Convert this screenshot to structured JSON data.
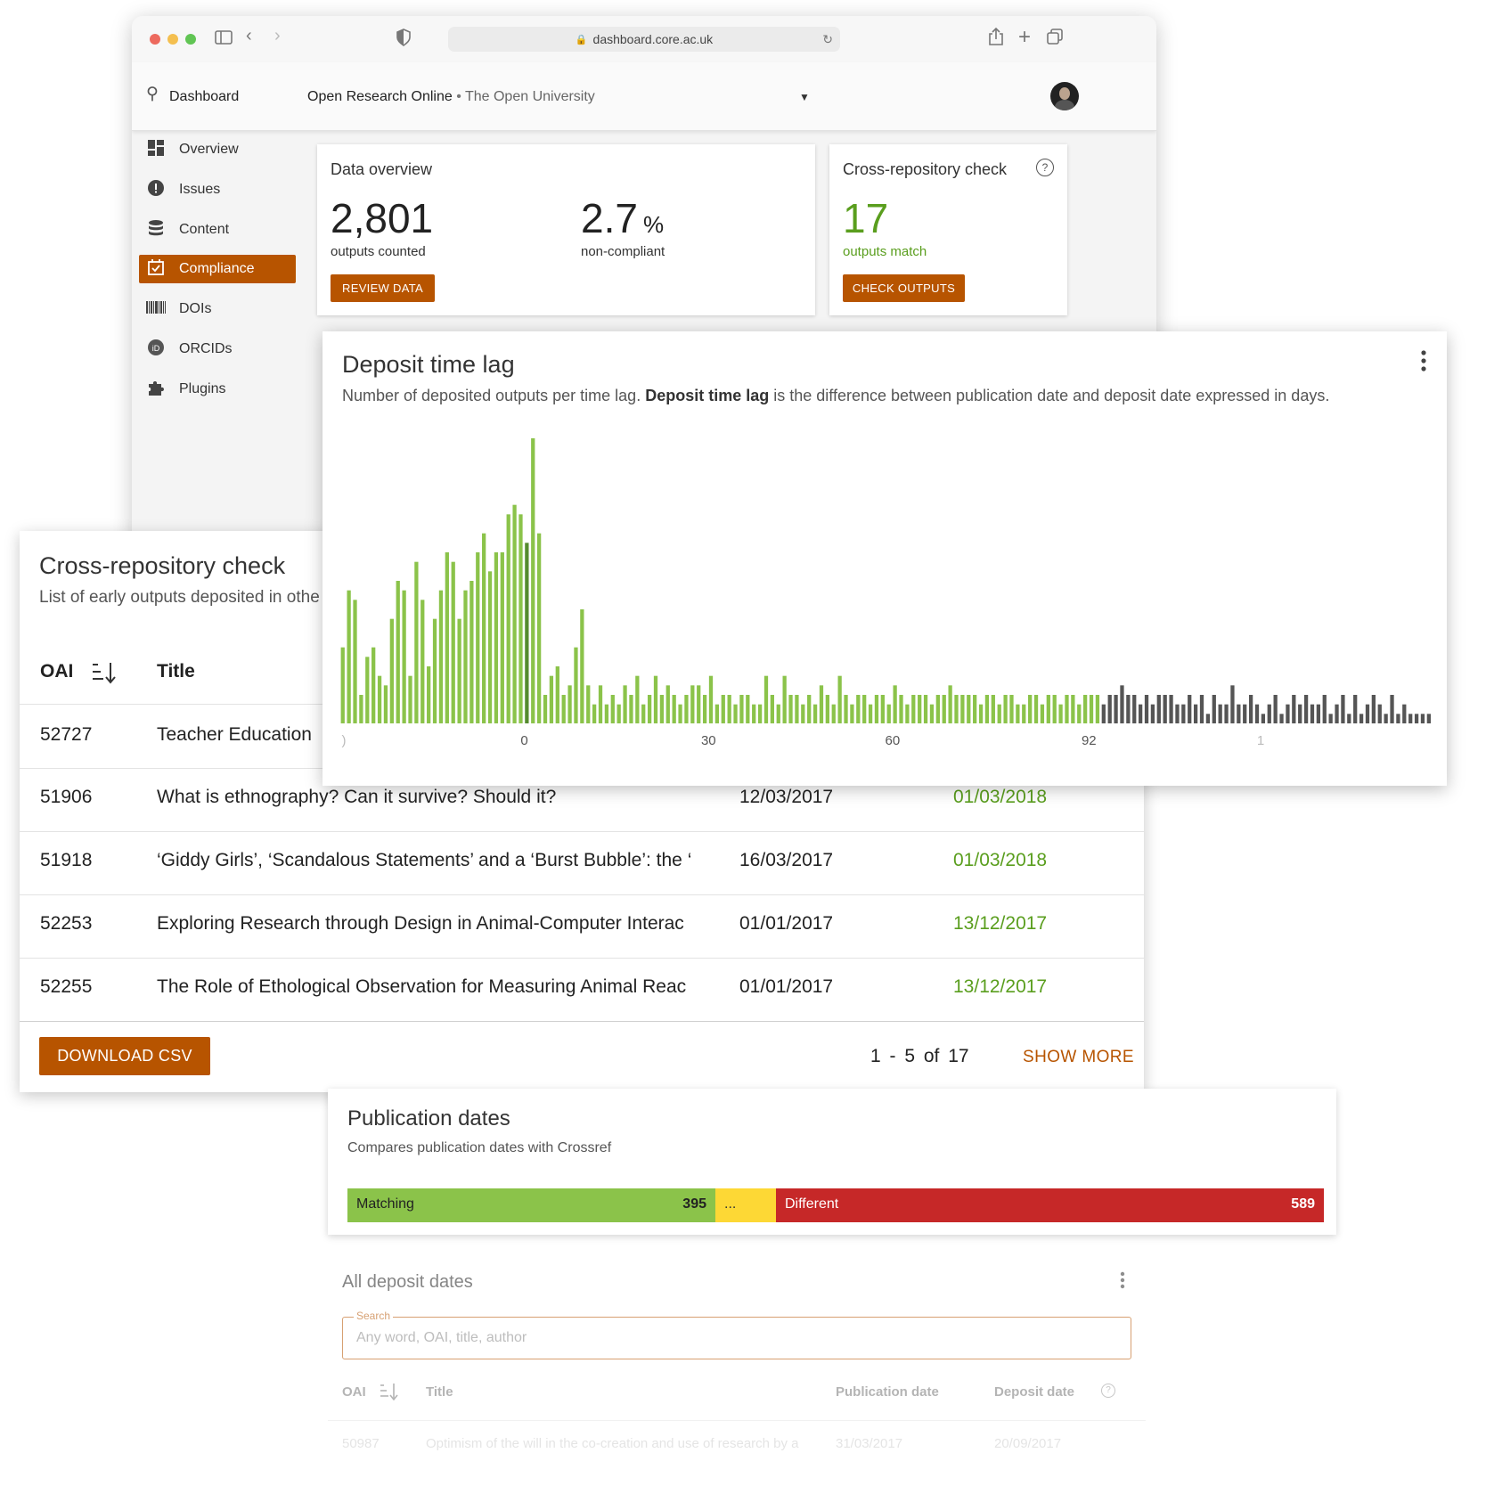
{
  "browser": {
    "url": "dashboard.core.ac.uk"
  },
  "header": {
    "app_title": "Dashboard",
    "repo_name": "Open Research Online",
    "repo_sep": " • ",
    "org_name": "The Open University"
  },
  "sidebar": {
    "items": [
      {
        "label": "Overview",
        "icon": "dashboard-icon"
      },
      {
        "label": "Issues",
        "icon": "alert-icon"
      },
      {
        "label": "Content",
        "icon": "database-icon"
      },
      {
        "label": "Compliance",
        "icon": "calendar-check-icon",
        "active": true
      },
      {
        "label": "DOIs",
        "icon": "barcode-icon"
      },
      {
        "label": "ORCIDs",
        "icon": "orcid-icon"
      },
      {
        "label": "Plugins",
        "icon": "puzzle-icon"
      }
    ]
  },
  "data_overview": {
    "title": "Data overview",
    "outputs_value": "2,801",
    "outputs_label": "outputs counted",
    "noncompliant_value": "2.7",
    "noncompliant_unit": "%",
    "noncompliant_label": "non-compliant",
    "button": "REVIEW DATA"
  },
  "cross_summary": {
    "title": "Cross-repository check",
    "value": "17",
    "label": "outputs match",
    "button": "CHECK OUTPUTS"
  },
  "cross_table": {
    "title": "Cross-repository check",
    "subtitle": "List of early outputs deposited in othe",
    "col_oai": "OAI",
    "col_title": "Title",
    "rows": [
      {
        "oai": "52727",
        "title": "Teacher Education",
        "pub": "",
        "dep": ""
      },
      {
        "oai": "51906",
        "title": "What is ethnography? Can it survive? Should it?",
        "pub": "12/03/2017",
        "dep": "01/03/2018"
      },
      {
        "oai": "51918",
        "title": "‘Giddy Girls’, ‘Scandalous Statements’ and a ‘Burst Bubble’: the ‘",
        "pub": "16/03/2017",
        "dep": "01/03/2018"
      },
      {
        "oai": "52253",
        "title": "Exploring Research through Design in Animal-Computer Interac",
        "pub": "01/01/2017",
        "dep": "13/12/2017"
      },
      {
        "oai": "52255",
        "title": "The Role of Ethological Observation for Measuring Animal Reac",
        "pub": "01/01/2017",
        "dep": "13/12/2017"
      }
    ],
    "download": "DOWNLOAD CSV",
    "pager_range": "1 - 5",
    "pager_of": "of",
    "pager_total": "17",
    "show_more": "SHOW MORE"
  },
  "lag_card": {
    "title": "Deposit time lag",
    "desc_pre": "Number of deposited outputs per time lag. ",
    "desc_bold": "Deposit time lag",
    "desc_post": " is the difference between publication date and deposit date expressed in days."
  },
  "chart_data": {
    "type": "bar",
    "title": "Deposit time lag",
    "xlabel": "",
    "ylabel": "",
    "x_ticks": [
      ")",
      "0",
      "30",
      "60",
      "92",
      "1"
    ],
    "x_tick_positions": [
      -30,
      0,
      30,
      60,
      92,
      120
    ],
    "grid": false,
    "colors": {
      "early": "#8bc34a",
      "zero": "#558b2f",
      "late": "#8bc34a",
      "beyond": "#555555"
    },
    "x_start": -30,
    "values": [
      8,
      14,
      13,
      3,
      7,
      8,
      5,
      4,
      11,
      15,
      14,
      5,
      17,
      13,
      6,
      11,
      14,
      18,
      17,
      11,
      14,
      15,
      18,
      20,
      16,
      18,
      18,
      22,
      23,
      22,
      19,
      30,
      20,
      3,
      5,
      6,
      3,
      4,
      8,
      12,
      4,
      2,
      4,
      2,
      3,
      2,
      4,
      3,
      5,
      2,
      3,
      5,
      3,
      4,
      3,
      2,
      3,
      4,
      4,
      3,
      5,
      2,
      3,
      3,
      2,
      3,
      3,
      2,
      2,
      5,
      3,
      2,
      5,
      3,
      3,
      2,
      3,
      2,
      4,
      3,
      2,
      5,
      3,
      2,
      3,
      3,
      2,
      3,
      3,
      2,
      4,
      3,
      2,
      3,
      3,
      3,
      2,
      3,
      3,
      4,
      3,
      3,
      3,
      3,
      2,
      3,
      3,
      2,
      3,
      3,
      2,
      2,
      3,
      3,
      2,
      3,
      3,
      2,
      3,
      3,
      2,
      3,
      3,
      3,
      2,
      3,
      3,
      4,
      3,
      3,
      2,
      3,
      2,
      3,
      3,
      3,
      2,
      2,
      3,
      2,
      3,
      1,
      3,
      2,
      2,
      4,
      2,
      2,
      3,
      2,
      1,
      2,
      3,
      1,
      2,
      3,
      2,
      3,
      2,
      2,
      3,
      1,
      2,
      3,
      1,
      3,
      1,
      2,
      3,
      2,
      1,
      3,
      1,
      2,
      1,
      1,
      1,
      1
    ],
    "beyond_index": 124,
    "ylim": [
      0,
      30
    ]
  },
  "pub_dates": {
    "title": "Publication dates",
    "subtitle": "Compares publication dates with Crossref",
    "matching_label": "Matching",
    "matching_value": 395,
    "middle_label": "...",
    "different_label": "Different",
    "different_value": 589,
    "colors": {
      "matching": "#8bc34a",
      "middle": "#fdd835",
      "different": "#c62828"
    }
  },
  "all_deposits": {
    "title": "All deposit dates",
    "search_label": "Search",
    "search_placeholder": "Any word, OAI, title, author",
    "col_oai": "OAI",
    "col_title": "Title",
    "col_pub": "Publication date",
    "col_dep": "Deposit date",
    "row": {
      "oai": "50987",
      "title": "Optimism of the will in the co-creation and use of research by a",
      "pub": "31/03/2017",
      "dep": "20/09/2017"
    }
  }
}
